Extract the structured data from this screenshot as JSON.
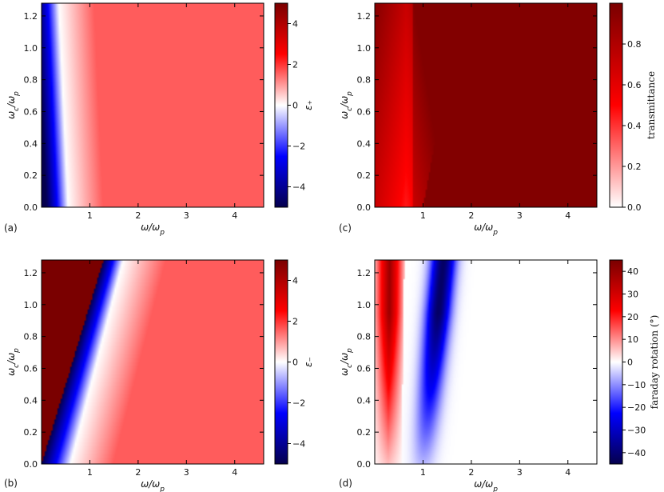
{
  "panel_labels": [
    "(a)",
    "(b)",
    "(c)",
    "(d)"
  ],
  "chart_data": [
    {
      "panel": "(a)",
      "type": "heatmap",
      "xlabel": "ω/ω_p",
      "ylabel": "ω_c/ω_p",
      "xlim": [
        0,
        4.6
      ],
      "ylim": [
        0,
        1.28
      ],
      "xticks": [
        1,
        2,
        3,
        4
      ],
      "yticks": [
        0.0,
        0.2,
        0.4,
        0.6,
        0.8,
        1.0,
        1.2
      ],
      "colorbar": {
        "label": "ε₊",
        "range": [
          -5,
          5
        ],
        "ticks": [
          -4,
          -2,
          0,
          2,
          4
        ],
        "colormap": [
          "#05004d",
          "#0000ff",
          "#ffffff",
          "#ff0000",
          "#7a0000"
        ]
      },
      "notes": "Negative region on the left, zero crossing at x = 0.5 for y = 0 shifting to x ≈ 0.35 at y = 1.28; above that it rises slowly to ≈ 1.5"
    },
    {
      "panel": "(b)",
      "type": "heatmap",
      "xlabel": "ω/ω_p",
      "ylabel": "ω_c/ω_p",
      "xlim": [
        0,
        4.6
      ],
      "ylim": [
        0,
        1.28
      ],
      "xticks": [
        1,
        2,
        3,
        4
      ],
      "yticks": [
        0.0,
        0.2,
        0.4,
        0.6,
        0.8,
        1.0,
        1.2
      ],
      "colorbar": {
        "label": "ε₋",
        "range": [
          -5,
          5
        ],
        "ticks": [
          -4,
          -2,
          0,
          2,
          4
        ],
        "colormap": [
          "#05004d",
          "#0000ff",
          "#ffffff",
          "#ff0000",
          "#7a0000"
        ]
      },
      "notes": "Resonance line at x = y (dark red above it); zero crossing rises from x ≈ 0.6 at y = 0 to ≈ 1.7 at y = 1.28"
    },
    {
      "panel": "(c)",
      "type": "heatmap",
      "xlabel": "ω/ω_p",
      "ylabel": "ω_c/ω_p",
      "xlim": [
        0,
        4.6
      ],
      "ylim": [
        0,
        1.28
      ],
      "xticks": [
        1,
        2,
        3,
        4
      ],
      "yticks": [
        0.0,
        0.2,
        0.4,
        0.6,
        0.8,
        1.0,
        1.2
      ],
      "colorbar": {
        "label": "transmittance",
        "range": [
          0,
          1
        ],
        "ticks": [
          0.0,
          0.2,
          0.4,
          0.6,
          0.8
        ],
        "colormap": [
          "#ffffff",
          "#ff0000",
          "#7a0000"
        ]
      },
      "notes": "Transmittance ≈ 0.98 above x ≈ 1; lower (≈ 0.4–0.7) for x < 1, with an X-shaped feature near x ≈ 0.7"
    },
    {
      "panel": "(d)",
      "type": "heatmap",
      "xlabel": "ω/ω_p",
      "ylabel": "ω_c/ω_p",
      "xlim": [
        0,
        4.6
      ],
      "ylim": [
        0,
        1.28
      ],
      "xticks": [
        1,
        2,
        3,
        4
      ],
      "yticks": [
        0.0,
        0.2,
        0.4,
        0.6,
        0.8,
        1.0,
        1.2
      ],
      "colorbar": {
        "label": "faraday rotation (°)",
        "range": [
          -45,
          45
        ],
        "ticks": [
          -40,
          -30,
          -20,
          -10,
          0,
          10,
          20,
          30,
          40
        ],
        "colormap": [
          "#05004d",
          "#0000ff",
          "#ffffff",
          "#ff0000",
          "#7a0000"
        ]
      },
      "notes": "Positive rotation band from x = 0 to ≈ 0.6 (strongest near y = 1.2); negative band along line from (1.0, 0) to (1.3, 1.28); ≈ 0 beyond x ≈ 2"
    }
  ]
}
